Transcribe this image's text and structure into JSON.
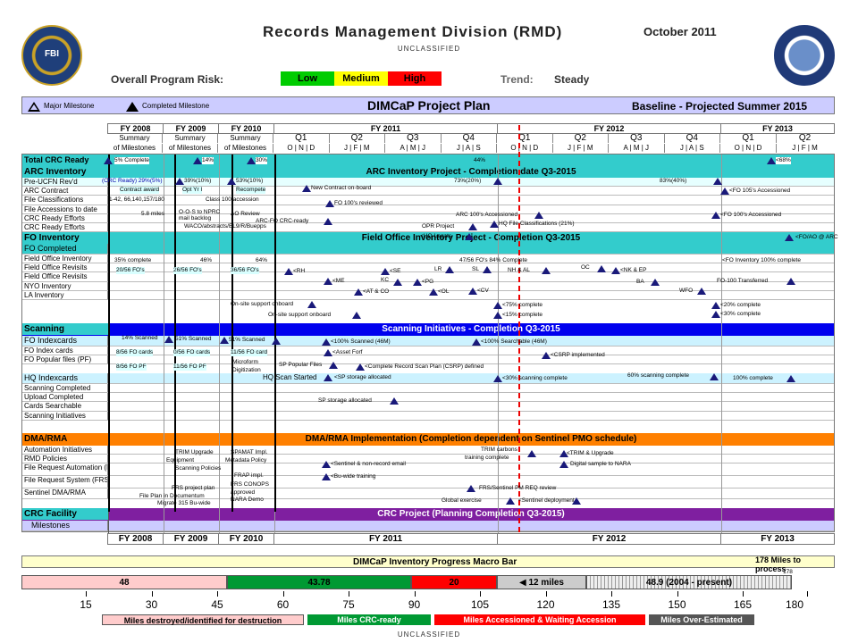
{
  "header": {
    "title": "Records Management Division (RMD)",
    "date": "October 2011",
    "classification_top": "UNCLASSIFIED",
    "classification_bottom": "UNCLASSIFIED"
  },
  "risk": {
    "label": "Overall Program Risk:",
    "low": "Low",
    "medium": "Medium",
    "high": "High",
    "trend_label": "Trend:",
    "trend_value": "Steady",
    "colors": {
      "low": "#00cc00",
      "medium": "#ffff00",
      "high": "#ff0000"
    }
  },
  "plan": {
    "legend_major": "Major Milestone",
    "legend_completed": "Completed Milestone",
    "title": "DIMCaP Project Plan",
    "baseline": "Baseline - Projected Summer 2015"
  },
  "fiscal_years": [
    "FY 2008",
    "FY 2009",
    "FY 2010",
    "FY 2011",
    "FY 2012",
    "FY 2013"
  ],
  "summary_labels": [
    "Summary",
    "Summary",
    "Summary"
  ],
  "milestone_labels": [
    "of Milestones",
    "of Milestones",
    "of Milestones"
  ],
  "quarters": [
    "Q1",
    "Q2",
    "Q3",
    "Q4",
    "Q1",
    "Q2",
    "Q3",
    "Q4",
    "Q1",
    "Q2"
  ],
  "months": [
    "O | N | D",
    "J | F | M",
    "A | M | J",
    "J | A | S",
    "O | N | D",
    "J | F | M",
    "A | M | J",
    "J | A | S",
    "O | N | D",
    "J | F | M"
  ],
  "sections": {
    "total_crc": "Total CRC Ready",
    "arc_inventory": "ARC Inventory",
    "arc_title": "ARC Inventory Project - Completion date Q3-2015",
    "fo_inventory": "FO Inventory",
    "fo_title": "Field Office Inventory Project - Completion Q3-2015",
    "fo_completed": "FO Completed",
    "scanning": "Scanning",
    "scan_title": "Scanning Initiatives - Completion Q3-2015",
    "fo_indexcards": "FO Indexcards",
    "hq_indexcards": "HQ Indexcards",
    "dma": "DMA/RMA",
    "dma_title": "DMA/RMA Implementation (Completion dependent on Sentinel PMO schedule)",
    "crc_facility": "CRC Facility",
    "crc_title": "CRC Project (Planning Completion Q3-2015)",
    "milestones": "Milestones"
  },
  "row_labels": {
    "arc": [
      "Pre-UCFN Rev'd",
      "ARC Contract",
      "File Classifications",
      "File Accessions to date",
      "CRC Ready Efforts",
      "CRC Ready Efforts"
    ],
    "fo": [
      "Field Office Inventory",
      "Field Office Revisits",
      "Field Office Revisits",
      "NYO Inventory",
      "LA Inventory"
    ],
    "scan": [
      "FO Index cards",
      "FO Popular files (PF)"
    ],
    "hq": [
      "Scanning Completed",
      "Upload Completed",
      "Cards Searchable",
      "Scanning Initiatives"
    ],
    "dma": [
      "Automation Initiatives",
      "RMD Policies",
      "File Request Automation (FRAP)",
      "File Request System (FRS)",
      "Sentinel DMA/RMA"
    ]
  },
  "notes": {
    "total1": "5% Complete",
    "total2": "14%",
    "total3": "30%",
    "total4": "44%",
    "total5": "<68%",
    "crc_percent": "(CRC Ready) 29%(5%)",
    "arc_39": "39%(10%)",
    "arc_53": "53%(10%)",
    "arc_73": "73%(20%)",
    "arc_83": "83%(40%)",
    "contract": "Contract award",
    "optyr": "Opt Yr I",
    "recompete": "Recompete",
    "new_contract": "New Contract on-board",
    "fo105": "<FO 105's Accessioned",
    "mileage": "1-42, 66,140,157/180",
    "class100": "Class 100 accession",
    "fo100_rev": "FO 100's reviewed",
    "miles58": "5.8 miles",
    "o_o_s": "O-O-S to NPRC",
    "mail_backlog": "mail backlog",
    "ao_review": "AO Review",
    "arc_fo": "ARC-FO CRC-ready",
    "arc100": "ARC 100's Accessioned",
    "fo100_acc": "<FO 100's Accessioned",
    "waco": "WACO/abstracts/EL9/R/Buepps",
    "hq_fileclass": "HQ File Classifications (21%)",
    "opr": "OPR Project",
    "hq_legats": "<HQ-Legats",
    "foao": "<FO/AO @ ARC",
    "fo_35": "35% complete",
    "fo_46": "46%",
    "fo_64": "64%",
    "fo_47": "47/56 FO's 84% Complete",
    "fo_100": "<FO Inventory 100% complete",
    "fo_20": "20/56 FO's",
    "fo_26": "26/56 FO's",
    "fo_36": "36/56 FO's",
    "rh": "<RH",
    "se": "<SE",
    "lr": "LR",
    "sl": "SL",
    "nh_al": "NH & AL",
    "oc": "OC",
    "nk_ep": "<NK & EP",
    "me": "<ME",
    "kc": "KC",
    "pg": "<PG",
    "ba": "BA",
    "fo100_transferred": "FO-100 Transferred",
    "at_co": "<AT & CO",
    "ol": "<OL",
    "cv": "<CV",
    "wfo": "WFO",
    "onsite1": "On-site support onboard",
    "onsite2": "On-site support onboard",
    "c75": "<75% complete",
    "c15": "<15% complete",
    "c20": "<20% complete",
    "c30": "<30% complete",
    "scan14": "14% Scanned",
    "scan51": "51% Scanned",
    "scan51b": "51% Scanned",
    "scan100": "<100% Scanned (46M)",
    "search100": "<100% Searchable (46M)",
    "cards856": "8/56 FO cards",
    "cards856b": "0/56 FO cards",
    "cards1156": "11/56 FO card",
    "asset": "<Asset Forf",
    "csrp": "<CSRP implemented",
    "microform": "Microform",
    "digitization": "Digitization",
    "pf856": "8/56 FO PF",
    "pf1156": "11/56 FO PF",
    "sp_popular": "SP Popular Files",
    "csrp_def": "<Complete Record Scan Plan (CSRP) defined",
    "hq_scan": "HQ Scan Started",
    "sp_storage": "<SP storage allocated",
    "scan30": "<30% scanning complete",
    "scan60": "60% scanning complete",
    "scan100c": "100% complete",
    "sp_storage2": "SP storage allocated",
    "dma_trim": "TRIM Upgrade",
    "dma_equip": "Equipment",
    "dma_scan_pol": "Scanning Policies",
    "spamat": "SPAMAT Impl.",
    "metadata": "Metadata Policy",
    "trim_cb": "TRIM carbons",
    "training": "training complete",
    "trim_upg": "<TRIM & Upgrade",
    "dig_nara": "Digital sample to NARA",
    "sentinel_email": "<Sentinel & non-record email",
    "frap": "FRAP impl.",
    "buwide": "<Bu-wide training",
    "frs_proj": "FRS project plan",
    "fileplan": "File Plan in Documentum",
    "frs_conops": "FRS CONOPS",
    "approved": "approved",
    "nara_demo": "NARA Demo",
    "frs_pm": "FRS/Sentinel PM REQ review",
    "migrate": "Migrate 315 Bu-wide",
    "global": "Global exercise",
    "sentinel_dep": "<Sentinel deployment"
  },
  "macro": {
    "title": "DIMCaP Inventory Progress Macro Bar",
    "to_process": "178 Miles to process",
    "tick178": "178",
    "destroyed_value": "48",
    "crc_value": "43.78",
    "accession_value": "20",
    "twelve_miles": "12 miles",
    "over_value": "48.9 (2004 - present)",
    "axis_ticks": [
      "15",
      "30",
      "45",
      "60",
      "75",
      "90",
      "105",
      "120",
      "135",
      "150",
      "165",
      "180"
    ],
    "legend_destroyed": "Miles destroyed/identified for destruction",
    "legend_crc": "Miles CRC-ready",
    "legend_accession": "Miles Accessioned & Waiting Accession",
    "legend_over": "Miles Over-Estimated"
  }
}
